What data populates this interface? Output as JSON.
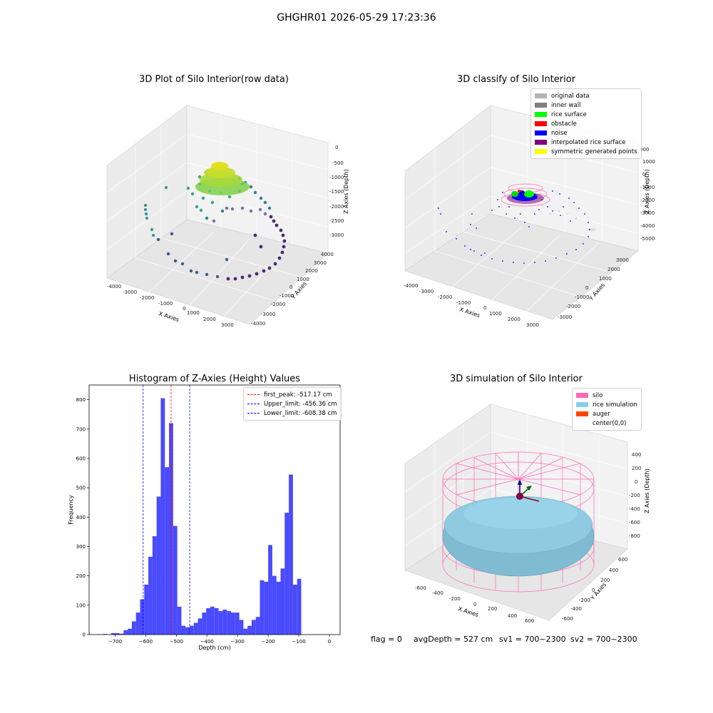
{
  "figure": {
    "suptitle": "GHGHR01 2026-05-29 17:23:36",
    "footer": {
      "flag": "flag = 0",
      "avg_depth": "avgDepth = 527 cm",
      "sv1": "sv1 = 700~2300",
      "sv2": "sv2 = 700~2300"
    }
  },
  "panels": {
    "raw": {
      "title": "3D Plot of Silo Interior(row data)",
      "x_label": "X Axies",
      "y_label": "Y Axies",
      "z_label": "Z Axies (Depth)",
      "x_ticks": [
        "-4000",
        "-3000",
        "-2000",
        "-1000",
        "0",
        "1000",
        "2000",
        "3000"
      ],
      "y_ticks": [
        "4000",
        "3000",
        "2000",
        "1000",
        "0",
        "-1000",
        "-2000",
        "-3000",
        "-4000"
      ],
      "z_ticks": [
        "0",
        "-500",
        "-1000",
        "-1500",
        "-2000",
        "-2500",
        "-3000"
      ]
    },
    "classify": {
      "title": "3D classify of Silo Interior",
      "x_label": "X Axies",
      "y_label": "Y Axies",
      "z_label": "Z Axies (Depth)",
      "x_ticks": [
        "-4000",
        "-3000",
        "-2000",
        "-1000",
        "0",
        "1000",
        "2000",
        "3000"
      ],
      "y_ticks": [
        "3000",
        "2000",
        "1000",
        "0",
        "-1000",
        "-2000",
        "-3000"
      ],
      "z_ticks": [
        "1000",
        "0",
        "-1000",
        "-2000",
        "-3000",
        "-4000",
        "-5000"
      ],
      "z_top_tick": "000",
      "legend": [
        {
          "label": "original data",
          "color": "#b4b4b4"
        },
        {
          "label": "inner wall",
          "color": "#808080"
        },
        {
          "label": "rice surface",
          "color": "#00ff00"
        },
        {
          "label": "obstacle",
          "color": "#ff0000"
        },
        {
          "label": "noise",
          "color": "#0000ff"
        },
        {
          "label": "interpolated rice surface",
          "color": "#800080"
        },
        {
          "label": "symmetric generated points",
          "color": "#ffff00"
        }
      ]
    },
    "simulation": {
      "title": "3D simulation of Silo Interior",
      "x_label": "X Axies",
      "y_label": "Y Axies",
      "z_label": "Z Axies (Depth)",
      "x_ticks": [
        "-600",
        "-400",
        "-200",
        "0",
        "200",
        "400",
        "600"
      ],
      "y_ticks": [
        "600",
        "400",
        "200",
        "0",
        "-200",
        "-400",
        "-600"
      ],
      "z_ticks": [
        "400",
        "200",
        "0",
        "-200",
        "-400",
        "-600",
        "-800"
      ],
      "legend": [
        {
          "label": "silo",
          "color": "#ff69b4"
        },
        {
          "label": "rice simulation",
          "color": "#87ceeb"
        },
        {
          "label": "auger",
          "color": "#ff4500"
        },
        {
          "label": "center(0,0)",
          "color": ""
        }
      ]
    }
  },
  "chart_data": [
    {
      "type": "bar",
      "title": "Histogram of Z-Axies (Height) Values",
      "xlabel": "Depth (cm)",
      "ylabel": "Frequency",
      "xlim": [
        -785,
        35
      ],
      "ylim": [
        0,
        850
      ],
      "x_ticks": [
        -700,
        -600,
        -500,
        -400,
        -300,
        -200,
        -100,
        0
      ],
      "y_ticks": [
        0,
        100,
        200,
        300,
        400,
        500,
        600,
        700,
        800
      ],
      "bar_color": "#4040ff",
      "bin_edges": [
        -740.0,
        -726.5,
        -713.0,
        -699.5,
        -686.0,
        -672.5,
        -659.0,
        -645.5,
        -632.0,
        -618.5,
        -605.0,
        -591.5,
        -578.0,
        -564.5,
        -551.0,
        -537.5,
        -524.0,
        -510.5,
        -497.0,
        -483.5,
        -470.0,
        -456.5,
        -443.0,
        -429.5,
        -416.0,
        -402.5,
        -389.0,
        -375.5,
        -362.0,
        -348.5,
        -335.0,
        -321.5,
        -308.0,
        -294.5,
        -281.0,
        -267.5,
        -254.0,
        -240.5,
        -227.0,
        -213.5,
        -200.0,
        -186.5,
        -173.0,
        -159.5,
        -146.0,
        -132.5,
        -119.0,
        -105.5,
        -92.0,
        -78.5,
        -65.0,
        -51.5,
        -38.0,
        -24.5,
        -11.0,
        2.0
      ],
      "values": [
        2,
        0,
        5,
        5,
        3,
        15,
        20,
        45,
        75,
        120,
        170,
        265,
        335,
        470,
        805,
        570,
        720,
        370,
        95,
        30,
        25,
        30,
        40,
        55,
        75,
        90,
        95,
        90,
        80,
        85,
        80,
        75,
        75,
        50,
        20,
        30,
        50,
        60,
        185,
        180,
        305,
        200,
        180,
        225,
        415,
        545,
        170,
        190,
        0,
        0,
        0,
        0,
        0,
        0,
        0
      ],
      "vlines": [
        {
          "x": -517.17,
          "color": "#ff0000",
          "label": "first_peak: -517.17 cm"
        },
        {
          "x": -456.36,
          "color": "#0000ff",
          "label": "Upper_limit: -456.36 cm"
        },
        {
          "x": -608.38,
          "color": "#0000ff",
          "label": "Lower_limit: -608.38 cm"
        }
      ],
      "legend_position": "top-right"
    }
  ]
}
